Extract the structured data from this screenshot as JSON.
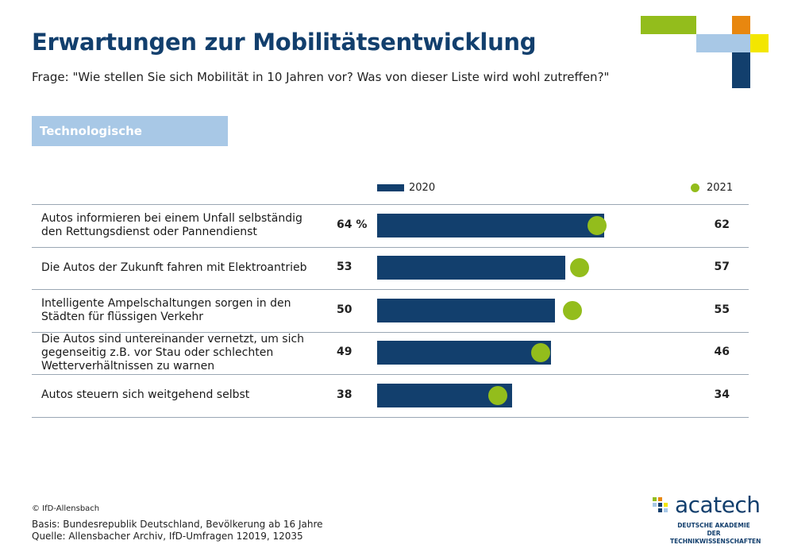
{
  "title": "Erwartungen zur Mobilitätsentwicklung",
  "subtitle": "Frage: \"Wie stellen Sie sich Mobilität in 10 Jahren vor? Was von dieser Liste wird wohl zutreffen?\"",
  "section_label": "Technologische Veränderungen",
  "colors": {
    "bar": "#123f6d",
    "dot": "#93bd1c",
    "section": "#a8c8e6",
    "title": "#123f6d"
  },
  "chart_data": {
    "type": "bar",
    "orientation": "horizontal",
    "xlim": [
      0,
      100
    ],
    "legend": [
      {
        "name": "2020",
        "marker": "bar"
      },
      {
        "name": "2021",
        "marker": "dot"
      }
    ],
    "categories": [
      "Autos informieren bei einem Unfall selbständig den Rettungsdienst oder Pannendienst",
      "Die Autos der Zukunft fahren mit Elektroantrieb",
      "Intelligente Ampelschaltungen sorgen in den Städten für flüssigen Verkehr",
      "Die Autos sind untereinander vernetzt, um sich gegenseitig z.B. vor Stau oder schlechten Wetterverhältnissen zu warnen",
      "Autos steuern sich weitgehend selbst"
    ],
    "series": [
      {
        "name": "2020",
        "values": [
          64,
          53,
          50,
          49,
          38
        ]
      },
      {
        "name": "2021",
        "values": [
          62,
          57,
          55,
          46,
          34
        ]
      }
    ],
    "value_labels_2020": [
      "64 %",
      "53",
      "50",
      "49",
      "38"
    ],
    "value_labels_2021": [
      "62",
      "57",
      "55",
      "46",
      "34"
    ]
  },
  "footer": {
    "copyright": "© IfD-Allensbach",
    "basis": "Basis: Bundesrepublik Deutschland, Bevölkerung ab 16 Jahre",
    "source": "Quelle: Allensbacher Archiv, IfD-Umfragen 12019, 12035"
  },
  "logo": {
    "word": "acatech",
    "sub_line1": "DEUTSCHE AKADEMIE DER",
    "sub_line2": "TECHNIKWISSENSCHAFTEN"
  }
}
